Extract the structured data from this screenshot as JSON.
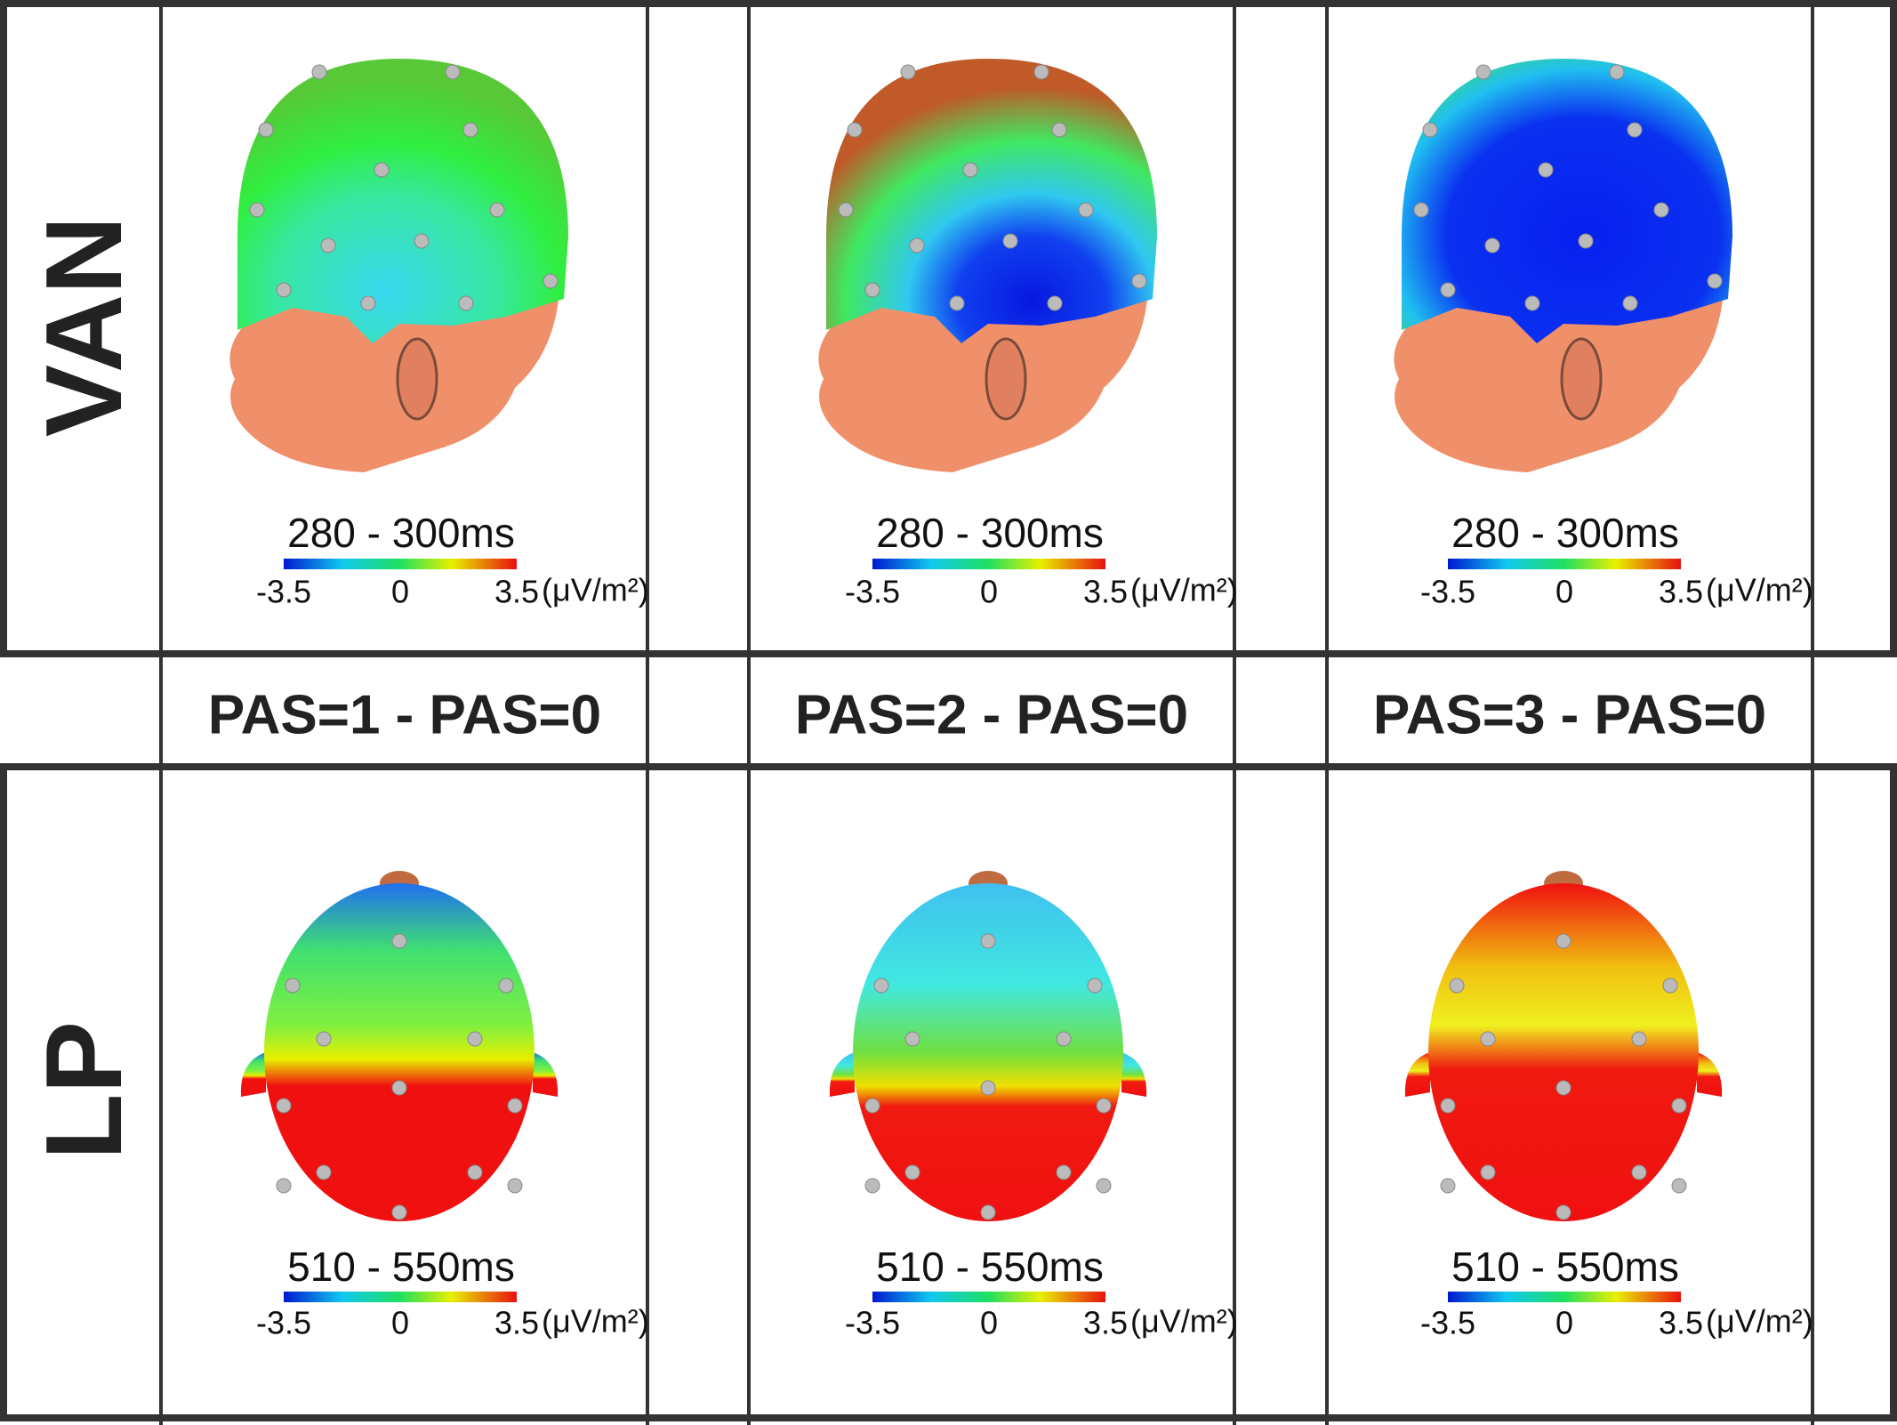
{
  "columns": [
    "PAS=1 - PAS=0",
    "PAS=2 - PAS=0",
    "PAS=3 - PAS=0"
  ],
  "rows": [
    {
      "label": "VAN",
      "panels": [
        {
          "window": "280 - 300ms",
          "scale": {
            "min": "-3.5",
            "mid": "0",
            "max": "3.5",
            "unit": "(μV/m²)"
          }
        },
        {
          "window": "280 - 300ms",
          "scale": {
            "min": "-3.5",
            "mid": "0",
            "max": "3.5",
            "unit": "(μV/m²)"
          }
        },
        {
          "window": "280 - 300ms",
          "scale": {
            "min": "-3.5",
            "mid": "0",
            "max": "3.5",
            "unit": "(μV/m²)"
          }
        }
      ]
    },
    {
      "label": "LP",
      "panels": [
        {
          "window": "510 - 550ms",
          "scale": {
            "min": "-3.5",
            "mid": "0",
            "max": "3.5",
            "unit": "(μV/m²)"
          }
        },
        {
          "window": "510 - 550ms",
          "scale": {
            "min": "-3.5",
            "mid": "0",
            "max": "3.5",
            "unit": "(μV/m²)"
          }
        },
        {
          "window": "510 - 550ms",
          "scale": {
            "min": "-3.5",
            "mid": "0",
            "max": "3.5",
            "unit": "(μV/m²)"
          }
        }
      ]
    }
  ]
}
